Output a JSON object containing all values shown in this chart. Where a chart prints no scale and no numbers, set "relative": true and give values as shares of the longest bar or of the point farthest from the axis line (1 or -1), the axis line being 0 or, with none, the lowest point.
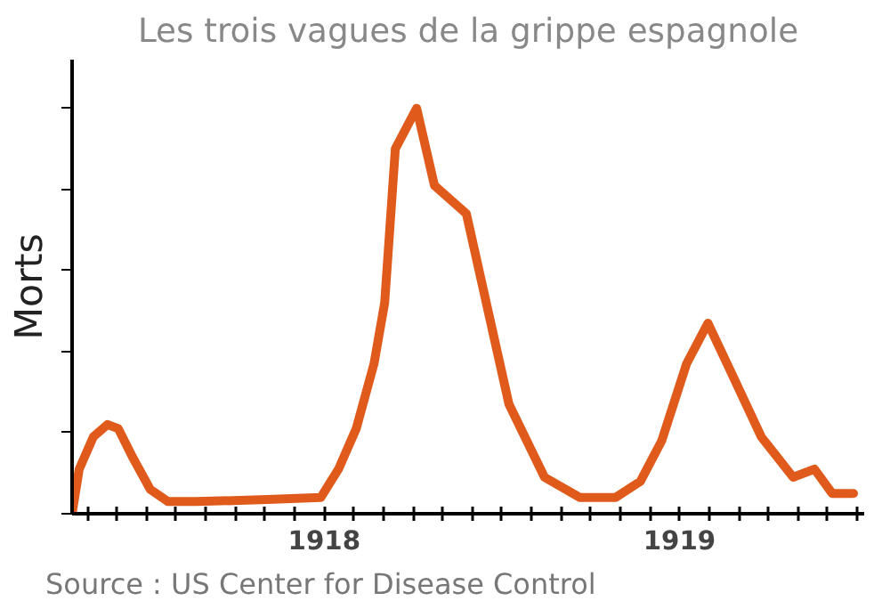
{
  "chart_data": {
    "type": "line",
    "title": "Les trois vagues de la grippe espagnole",
    "ylabel": "Morts",
    "relative": true,
    "tick_labels": "x",
    "grid": false,
    "marker": "none",
    "line_style": "solid",
    "xlim": [
      1917.29,
      1919.52
    ],
    "xticks": [
      {
        "value": 1917.333,
        "label": null
      },
      {
        "value": 1917.417,
        "label": null
      },
      {
        "value": 1917.5,
        "label": null
      },
      {
        "value": 1917.583,
        "label": null
      },
      {
        "value": 1917.667,
        "label": null
      },
      {
        "value": 1917.75,
        "label": null
      },
      {
        "value": 1917.833,
        "label": null
      },
      {
        "value": 1917.917,
        "label": null
      },
      1918,
      {
        "value": 1918.083,
        "label": null
      },
      {
        "value": 1918.167,
        "label": null
      },
      {
        "value": 1918.25,
        "label": null
      },
      {
        "value": 1918.333,
        "label": null
      },
      {
        "value": 1918.417,
        "label": null
      },
      {
        "value": 1918.5,
        "label": null
      },
      {
        "value": 1918.583,
        "label": null
      },
      {
        "value": 1918.667,
        "label": null
      },
      {
        "value": 1918.75,
        "label": null
      },
      {
        "value": 1918.833,
        "label": null
      },
      {
        "value": 1918.917,
        "label": null
      },
      1919,
      {
        "value": 1919.083,
        "label": null
      },
      {
        "value": 1919.167,
        "label": null
      },
      {
        "value": 1919.25,
        "label": null
      },
      {
        "value": 1919.333,
        "label": null
      },
      {
        "value": 1919.417,
        "label": null
      },
      {
        "value": 1919.5,
        "label": null
      }
    ],
    "annotations": [
      "Source : US Center for Disease Control"
    ],
    "series": [
      {
        "color": "#e05a1c",
        "x": [
          1917.29,
          1917.31,
          1917.35,
          1917.39,
          1917.42,
          1917.46,
          1917.51,
          1917.56,
          1917.64,
          1917.84,
          1917.99,
          1918.04,
          1918.09,
          1918.14,
          1918.17,
          1918.2,
          1918.26,
          1918.31,
          1918.4,
          1918.52,
          1918.62,
          1918.72,
          1918.82,
          1918.89,
          1918.95,
          1919.02,
          1919.08,
          1919.15,
          1919.23,
          1919.32,
          1919.38,
          1919.43,
          1919.49
        ],
        "values": [
          0,
          0.11,
          0.19,
          0.22,
          0.21,
          0.14,
          0.06,
          0.03,
          0.03,
          0.035,
          0.04,
          0.11,
          0.21,
          0.37,
          0.52,
          0.9,
          1,
          0.81,
          0.74,
          0.27,
          0.09,
          0.04,
          0.04,
          0.08,
          0.18,
          0.37,
          0.47,
          0.34,
          0.19,
          0.09,
          0.11,
          0.05,
          0.05
        ]
      }
    ]
  }
}
